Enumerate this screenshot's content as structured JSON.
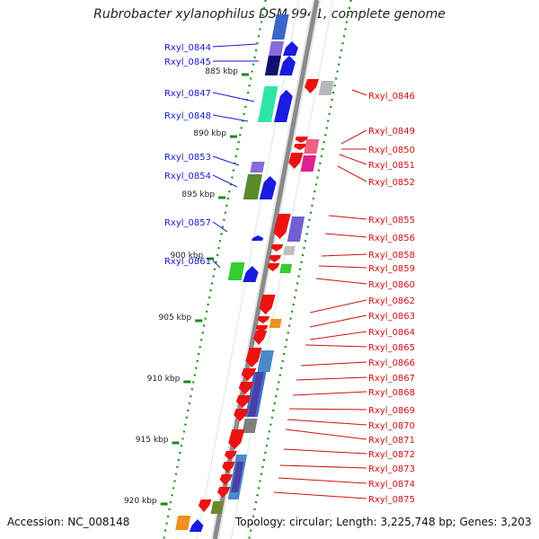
{
  "title": "Rubrobacter xylanophilus DSM 9941, complete genome",
  "footer": {
    "accession": "Accession: NC_008148",
    "summary": "Topology: circular; Length: 3,225,748 bp; Genes: 3,203"
  },
  "colors": {
    "backbone": "#8a8a8a",
    "tick": "#1a8a1a",
    "left_label": "#1a1acc",
    "right_label": "#cc1111"
  },
  "kbp_ticks": [
    "885 kbp",
    "890 kbp",
    "895 kbp",
    "900 kbp",
    "905 kbp",
    "910 kbp",
    "915 kbp",
    "920 kbp"
  ],
  "left_genes": [
    {
      "label": "Rxyl_0844"
    },
    {
      "label": "Rxyl_0845"
    },
    {
      "label": "Rxyl_0847"
    },
    {
      "label": "Rxyl_0848"
    },
    {
      "label": "Rxyl_0853"
    },
    {
      "label": "Rxyl_0854"
    },
    {
      "label": "Rxyl_0857"
    },
    {
      "label": "Rxyl_0861"
    }
  ],
  "right_genes": [
    {
      "label": "Rxyl_0846"
    },
    {
      "label": "Rxyl_0849"
    },
    {
      "label": "Rxyl_0850"
    },
    {
      "label": "Rxyl_0851"
    },
    {
      "label": "Rxyl_0852"
    },
    {
      "label": "Rxyl_0855"
    },
    {
      "label": "Rxyl_0856"
    },
    {
      "label": "Rxyl_0858"
    },
    {
      "label": "Rxyl_0859"
    },
    {
      "label": "Rxyl_0860"
    },
    {
      "label": "Rxyl_0862"
    },
    {
      "label": "Rxyl_0863"
    },
    {
      "label": "Rxyl_0864"
    },
    {
      "label": "Rxyl_0865"
    },
    {
      "label": "Rxyl_0866"
    },
    {
      "label": "Rxyl_0867"
    },
    {
      "label": "Rxyl_0868"
    },
    {
      "label": "Rxyl_0869"
    },
    {
      "label": "Rxyl_0870"
    },
    {
      "label": "Rxyl_0871"
    },
    {
      "label": "Rxyl_0872"
    },
    {
      "label": "Rxyl_0873"
    },
    {
      "label": "Rxyl_0874"
    },
    {
      "label": "Rxyl_0875"
    }
  ]
}
